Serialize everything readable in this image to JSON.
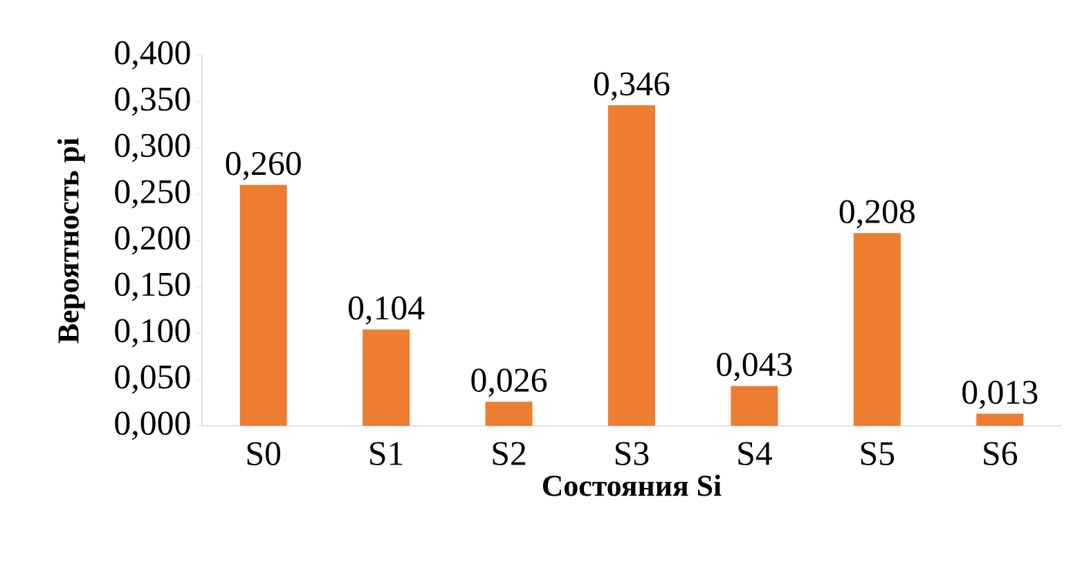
{
  "chart_data": {
    "type": "bar",
    "xlabel": "Состояния Si",
    "ylabel": "Вероятность pi",
    "categories": [
      "S0",
      "S1",
      "S2",
      "S3",
      "S4",
      "S5",
      "S6"
    ],
    "values": [
      0.26,
      0.104,
      0.026,
      0.346,
      0.043,
      0.208,
      0.013
    ],
    "value_labels": [
      "0,260",
      "0,104",
      "0,026",
      "0,346",
      "0,043",
      "0,208",
      "0,013"
    ],
    "color": "#ed7d31",
    "ylim": [
      0,
      0.4
    ],
    "yticks": [
      {
        "value": 0,
        "label": "0,000"
      },
      {
        "value": 0.05,
        "label": "0,050"
      },
      {
        "value": 0.1,
        "label": "0,100"
      },
      {
        "value": 0.15,
        "label": "0,150"
      },
      {
        "value": 0.2,
        "label": "0,200"
      },
      {
        "value": 0.25,
        "label": "0,250"
      },
      {
        "value": 0.3,
        "label": "0,300"
      },
      {
        "value": 0.35,
        "label": "0,350"
      },
      {
        "value": 0.4,
        "label": "0,400"
      }
    ],
    "grid": false
  }
}
